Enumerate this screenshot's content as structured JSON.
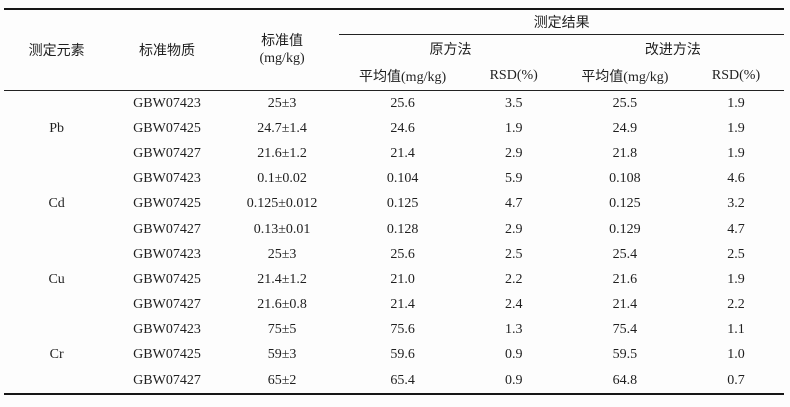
{
  "page": {
    "background_color": "#fdfdfd",
    "text_color": "#1f1f1f",
    "rule_color": "#161616"
  },
  "table": {
    "header": {
      "element": "测定元素",
      "material": "标准物质",
      "standard_line1": "标准值",
      "standard_line2": "(mg/kg)",
      "results": "测定结果",
      "method_original": "原方法",
      "method_improved": "改进方法",
      "mean": "平均值(mg/kg)",
      "rsd": "RSD(%)"
    },
    "groups": [
      {
        "element": "Pb",
        "rows": [
          {
            "material": "GBW07423",
            "standard": "25±3",
            "mean_orig": "25.6",
            "rsd_orig": "3.5",
            "mean_impr": "25.5",
            "rsd_impr": "1.9"
          },
          {
            "material": "GBW07425",
            "standard": "24.7±1.4",
            "mean_orig": "24.6",
            "rsd_orig": "1.9",
            "mean_impr": "24.9",
            "rsd_impr": "1.9"
          },
          {
            "material": "GBW07427",
            "standard": "21.6±1.2",
            "mean_orig": "21.4",
            "rsd_orig": "2.9",
            "mean_impr": "21.8",
            "rsd_impr": "1.9"
          }
        ]
      },
      {
        "element": "Cd",
        "rows": [
          {
            "material": "GBW07423",
            "standard": "0.1±0.02",
            "mean_orig": "0.104",
            "rsd_orig": "5.9",
            "mean_impr": "0.108",
            "rsd_impr": "4.6"
          },
          {
            "material": "GBW07425",
            "standard": "0.125±0.012",
            "mean_orig": "0.125",
            "rsd_orig": "4.7",
            "mean_impr": "0.125",
            "rsd_impr": "3.2"
          },
          {
            "material": "GBW07427",
            "standard": "0.13±0.01",
            "mean_orig": "0.128",
            "rsd_orig": "2.9",
            "mean_impr": "0.129",
            "rsd_impr": "4.7"
          }
        ]
      },
      {
        "element": "Cu",
        "rows": [
          {
            "material": "GBW07423",
            "standard": "25±3",
            "mean_orig": "25.6",
            "rsd_orig": "2.5",
            "mean_impr": "25.4",
            "rsd_impr": "2.5"
          },
          {
            "material": "GBW07425",
            "standard": "21.4±1.2",
            "mean_orig": "21.0",
            "rsd_orig": "2.2",
            "mean_impr": "21.6",
            "rsd_impr": "1.9"
          },
          {
            "material": "GBW07427",
            "standard": "21.6±0.8",
            "mean_orig": "21.4",
            "rsd_orig": "2.4",
            "mean_impr": "21.4",
            "rsd_impr": "2.2"
          }
        ]
      },
      {
        "element": "Cr",
        "rows": [
          {
            "material": "GBW07423",
            "standard": "75±5",
            "mean_orig": "75.6",
            "rsd_orig": "1.3",
            "mean_impr": "75.4",
            "rsd_impr": "1.1"
          },
          {
            "material": "GBW07425",
            "standard": "59±3",
            "mean_orig": "59.6",
            "rsd_orig": "0.9",
            "mean_impr": "59.5",
            "rsd_impr": "1.0"
          },
          {
            "material": "GBW07427",
            "standard": "65±2",
            "mean_orig": "65.4",
            "rsd_orig": "0.9",
            "mean_impr": "64.8",
            "rsd_impr": "0.7"
          }
        ]
      }
    ]
  }
}
